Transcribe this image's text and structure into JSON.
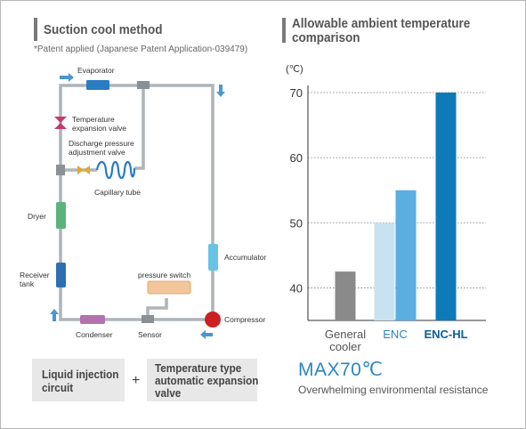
{
  "left": {
    "title": "Suction cool method",
    "note": "*Patent applied (Japanese Patent Application-039479)",
    "labels": {
      "evaporator": "Evaporator",
      "tev_1": "Temperature",
      "tev_2": "expansion valve",
      "dpav_1": "Discharge pressure",
      "dpav_2": "adjustment valve",
      "capillary": "Capillary tube",
      "dryer": "Dryer",
      "receiver_1": "Receiver",
      "receiver_2": "tank",
      "condenser": "Condenser",
      "sensor": "Sensor",
      "pressure_switch": "pressure switch",
      "accumulator": "Accumulator",
      "compressor": "Compressor"
    },
    "box1_line1": "Liquid injection",
    "box1_line2": "circuit",
    "plus": "+",
    "box2_line1": "Temperature type",
    "box2_line2": "automatic expansion",
    "box2_line3": "valve"
  },
  "right": {
    "title_line1": "Allowable ambient temperature",
    "title_line2": "comparison",
    "unit": "(℃)",
    "max_text": "MAX70℃",
    "subtitle": "Overwhelming environmental resistance"
  },
  "chart_data": {
    "type": "bar",
    "ylim": [
      35,
      70
    ],
    "yticks": [
      40,
      50,
      60,
      70
    ],
    "grid": "dotted horizontal",
    "categories": [
      {
        "label_line1": "General",
        "label_line2": "cooler",
        "label_color": "#555555"
      },
      {
        "label_line1": "ENC",
        "label_line2": "",
        "label_color": "#2a86c0"
      },
      {
        "label_line1": "ENC-HL",
        "label_line2": "",
        "label_color": "#0a5f96"
      }
    ],
    "bars": [
      {
        "category": 0,
        "value": 42.5,
        "color": "#8a8a8a",
        "slot": 0
      },
      {
        "category": 1,
        "value": 50,
        "color": "#c9e2f2",
        "slot": -1
      },
      {
        "category": 1,
        "value": 55,
        "color": "#5aaee0",
        "slot": 1
      },
      {
        "category": 2,
        "value": 70,
        "color": "#0e7ab8",
        "slot": 0
      }
    ]
  },
  "colors": {
    "pipe": "#aeb4b8",
    "accent_blue": "#2a86c0",
    "compressor": "#cc2020",
    "title_bar": "#7a7a7a"
  }
}
